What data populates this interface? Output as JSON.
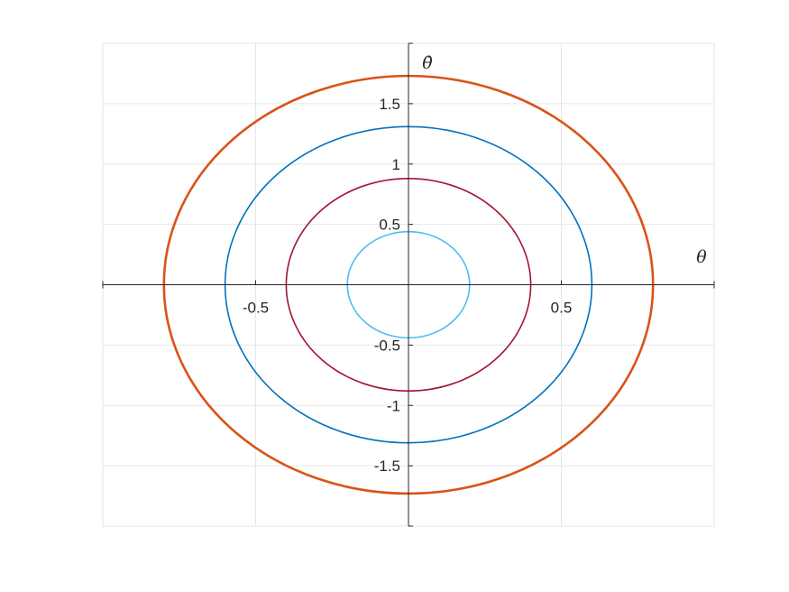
{
  "chart_data": {
    "type": "line",
    "title": "",
    "xlabel": "θ",
    "ylabel": "θ̇",
    "xlim": [
      -1.0,
      1.0
    ],
    "ylim": [
      -2.0,
      2.0
    ],
    "grid": true,
    "axis_location": "origin",
    "x_ticks": [
      {
        "value": -0.5,
        "label": "-0.5"
      },
      {
        "value": 0.5,
        "label": "0.5"
      }
    ],
    "y_ticks": [
      {
        "value": 1.5,
        "label": "1.5"
      },
      {
        "value": 1.0,
        "label": "1"
      },
      {
        "value": 0.5,
        "label": "0.5"
      },
      {
        "value": -0.5,
        "label": "-0.5"
      },
      {
        "value": -1.0,
        "label": "-1"
      },
      {
        "value": -1.5,
        "label": "-1.5"
      }
    ],
    "series": [
      {
        "shape": "ellipse",
        "theta_amplitude": 0.2,
        "thetadot_amplitude": 0.44,
        "color": "#4DBEEE"
      },
      {
        "shape": "ellipse",
        "theta_amplitude": 0.4,
        "thetadot_amplitude": 0.88,
        "color": "#A2142F"
      },
      {
        "shape": "ellipse",
        "theta_amplitude": 0.6,
        "thetadot_amplitude": 1.31,
        "color": "#0072BD"
      },
      {
        "shape": "ellipse",
        "theta_amplitude": 0.8,
        "thetadot_amplitude": 1.73,
        "color": "#D95319"
      }
    ]
  }
}
